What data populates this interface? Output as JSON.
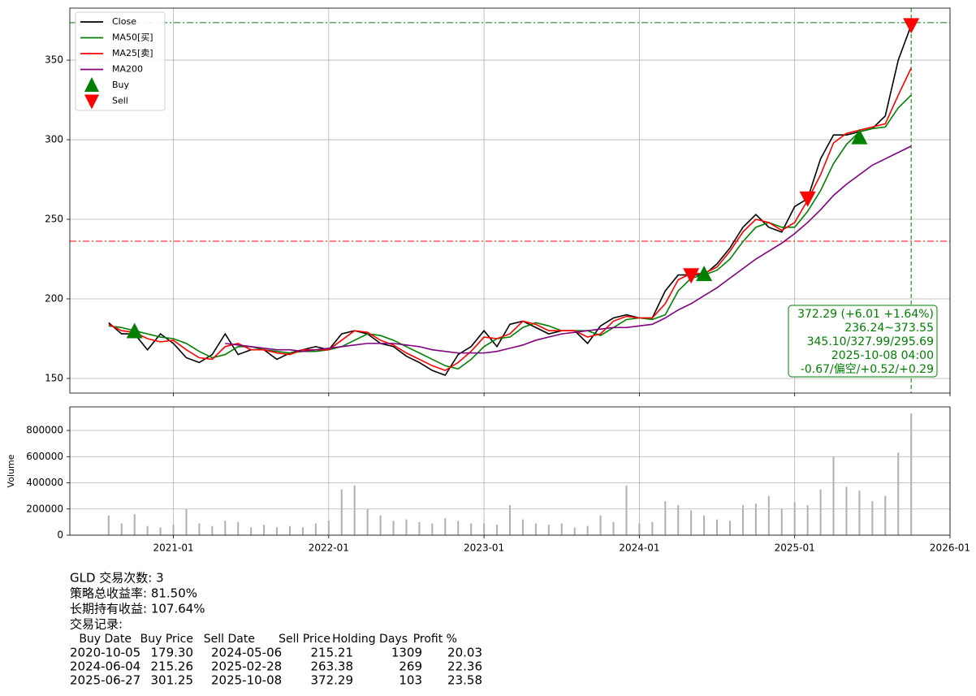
{
  "chart_data": [
    {
      "type": "line",
      "grid": true,
      "xtick_labels": false,
      "legend": "upper left",
      "x": [
        "2020-08",
        "2020-09",
        "2020-10",
        "2020-11",
        "2020-12",
        "2021-01",
        "2021-02",
        "2021-03",
        "2021-04",
        "2021-05",
        "2021-06",
        "2021-07",
        "2021-08",
        "2021-09",
        "2021-10",
        "2021-11",
        "2021-12",
        "2022-01",
        "2022-02",
        "2022-03",
        "2022-04",
        "2022-05",
        "2022-06",
        "2022-07",
        "2022-08",
        "2022-09",
        "2022-10",
        "2022-11",
        "2022-12",
        "2023-01",
        "2023-02",
        "2023-03",
        "2023-04",
        "2023-05",
        "2023-06",
        "2023-07",
        "2023-08",
        "2023-09",
        "2023-10",
        "2023-11",
        "2023-12",
        "2024-01",
        "2024-02",
        "2024-03",
        "2024-04",
        "2024-05",
        "2024-06",
        "2024-07",
        "2024-08",
        "2024-09",
        "2024-10",
        "2024-11",
        "2024-12",
        "2025-01",
        "2025-02",
        "2025-03",
        "2025-04",
        "2025-05",
        "2025-06",
        "2025-07",
        "2025-08",
        "2025-09",
        "2025-10"
      ],
      "xlim": [
        "2020-05",
        "2026-01"
      ],
      "xticks": [
        "2021-01",
        "2022-01",
        "2023-01",
        "2024-01",
        "2025-01",
        "2026-01"
      ],
      "ylim": [
        140.8,
        382.7
      ],
      "yticks": [
        150,
        200,
        250,
        300,
        350
      ],
      "series": [
        {
          "name": "Close",
          "color": "#000000",
          "values": [
            185,
            178,
            178,
            168,
            178,
            172,
            163,
            160,
            165,
            178,
            165,
            168,
            168,
            162,
            166,
            168,
            170,
            168,
            178,
            180,
            178,
            172,
            170,
            164,
            160,
            155,
            152,
            165,
            170,
            180,
            170,
            184,
            186,
            182,
            178,
            180,
            180,
            172,
            183,
            188,
            190,
            188,
            188,
            205,
            215,
            215,
            215,
            222,
            232,
            245,
            253,
            245,
            242,
            258,
            263,
            288,
            303,
            303,
            305,
            307,
            315,
            350,
            372
          ]
        },
        {
          "name": "MA50[买]",
          "color": "#008000",
          "values": [
            183,
            182,
            180,
            178,
            176,
            175,
            172,
            167,
            163,
            165,
            170,
            170,
            168,
            167,
            166,
            167,
            167,
            168,
            170,
            174,
            178,
            177,
            174,
            170,
            166,
            162,
            158,
            156,
            162,
            170,
            175,
            176,
            182,
            185,
            183,
            180,
            180,
            180,
            177,
            182,
            187,
            188,
            187,
            190,
            205,
            213,
            215,
            218,
            225,
            236,
            245,
            248,
            245,
            245,
            255,
            268,
            285,
            297,
            305,
            307,
            308,
            320,
            328
          ]
        },
        {
          "name": "MA25[卖]",
          "color": "#ff0000",
          "values": [
            184,
            180,
            179,
            175,
            173,
            174,
            168,
            163,
            162,
            170,
            172,
            168,
            168,
            166,
            165,
            168,
            168,
            168,
            174,
            180,
            179,
            174,
            171,
            166,
            162,
            158,
            155,
            160,
            167,
            176,
            175,
            178,
            186,
            184,
            180,
            180,
            180,
            176,
            178,
            186,
            189,
            188,
            188,
            197,
            212,
            216,
            216,
            220,
            230,
            242,
            250,
            248,
            243,
            248,
            262,
            278,
            298,
            304,
            306,
            308,
            310,
            328,
            345
          ]
        },
        {
          "name": "MA200",
          "color": "#800080",
          "values": [
            null,
            null,
            null,
            null,
            null,
            null,
            null,
            null,
            null,
            172,
            171,
            170,
            169,
            168,
            168,
            167,
            168,
            169,
            170,
            171,
            172,
            172,
            172,
            171,
            170,
            168,
            167,
            166,
            166,
            166,
            167,
            169,
            171,
            174,
            176,
            178,
            179,
            180,
            181,
            182,
            182,
            183,
            184,
            188,
            193,
            197,
            202,
            207,
            213,
            219,
            225,
            230,
            235,
            241,
            248,
            256,
            265,
            272,
            278,
            284,
            288,
            292,
            296
          ]
        },
        {
          "name": "Buy",
          "color": "#008000",
          "marker": "triangle-up",
          "x": [
            "2020-10",
            "2024-06",
            "2025-06"
          ],
          "values": [
            179.3,
            215.26,
            301.25
          ]
        },
        {
          "name": "Sell",
          "color": "#ff0000",
          "marker": "triangle-down",
          "x": [
            "2024-05",
            "2025-02",
            "2025-10"
          ],
          "values": [
            215.21,
            263.38,
            372.29
          ]
        }
      ],
      "hlines": [
        {
          "value": 373.55,
          "color": "#008000"
        },
        {
          "value": 236.24,
          "color": "#ff0000"
        }
      ],
      "vlines": [
        {
          "x": "2025-10",
          "color": "#008000"
        }
      ],
      "annotation": {
        "color": "#008000",
        "lines": [
          "372.29 (+6.01 +1.64%)",
          "236.24~373.55",
          "345.10/327.99/295.69",
          "2025-10-08 04:00",
          "-0.67/偏空/+0.52/+0.29"
        ]
      }
    },
    {
      "type": "bar",
      "grid": true,
      "y_label": "Volume",
      "color": "#b0b0b0",
      "x": [
        "2020-08",
        "2020-09",
        "2020-10",
        "2020-11",
        "2020-12",
        "2021-01",
        "2021-02",
        "2021-03",
        "2021-04",
        "2021-05",
        "2021-06",
        "2021-07",
        "2021-08",
        "2021-09",
        "2021-10",
        "2021-11",
        "2021-12",
        "2022-01",
        "2022-02",
        "2022-03",
        "2022-04",
        "2022-05",
        "2022-06",
        "2022-07",
        "2022-08",
        "2022-09",
        "2022-10",
        "2022-11",
        "2022-12",
        "2023-01",
        "2023-02",
        "2023-03",
        "2023-04",
        "2023-05",
        "2023-06",
        "2023-07",
        "2023-08",
        "2023-09",
        "2023-10",
        "2023-11",
        "2023-12",
        "2024-01",
        "2024-02",
        "2024-03",
        "2024-04",
        "2024-05",
        "2024-06",
        "2024-07",
        "2024-08",
        "2024-09",
        "2024-10",
        "2024-11",
        "2024-12",
        "2025-01",
        "2025-02",
        "2025-03",
        "2025-04",
        "2025-05",
        "2025-06",
        "2025-07",
        "2025-08",
        "2025-09",
        "2025-10"
      ],
      "values": [
        150000,
        90000,
        160000,
        70000,
        60000,
        80000,
        200000,
        90000,
        70000,
        110000,
        100000,
        60000,
        80000,
        60000,
        70000,
        60000,
        90000,
        110000,
        350000,
        380000,
        200000,
        150000,
        110000,
        120000,
        100000,
        90000,
        130000,
        110000,
        90000,
        90000,
        80000,
        230000,
        120000,
        90000,
        80000,
        90000,
        60000,
        70000,
        150000,
        100000,
        380000,
        90000,
        100000,
        260000,
        230000,
        190000,
        150000,
        120000,
        110000,
        230000,
        240000,
        300000,
        200000,
        250000,
        230000,
        350000,
        600000,
        370000,
        340000,
        260000,
        300000,
        630000,
        930000
      ],
      "xlim": [
        "2020-05",
        "2026-01"
      ],
      "xticks": [
        "2021-01",
        "2022-01",
        "2023-01",
        "2024-01",
        "2025-01",
        "2026-01"
      ],
      "ylim": [
        0,
        980000
      ],
      "yticks": [
        0,
        200000,
        400000,
        600000,
        800000
      ]
    }
  ],
  "summary": [
    "GLD 交易次数: 3",
    "策略总收益率: 81.50%",
    "长期持有收益: 107.64%",
    "交易记录:"
  ],
  "trade_table": {
    "columns": [
      "Buy Date",
      "Buy Price",
      "Sell Date",
      "Sell Price",
      "Holding Days",
      "Profit %"
    ],
    "rows": [
      [
        "2020-10-05",
        "179.30",
        "2024-05-06",
        "215.21",
        "1309",
        "20.03"
      ],
      [
        "2024-06-04",
        "215.26",
        "2025-02-28",
        "263.38",
        "269",
        "22.36"
      ],
      [
        "2025-06-27",
        "301.25",
        "2025-10-08",
        "372.29",
        "103",
        "23.58"
      ]
    ]
  }
}
